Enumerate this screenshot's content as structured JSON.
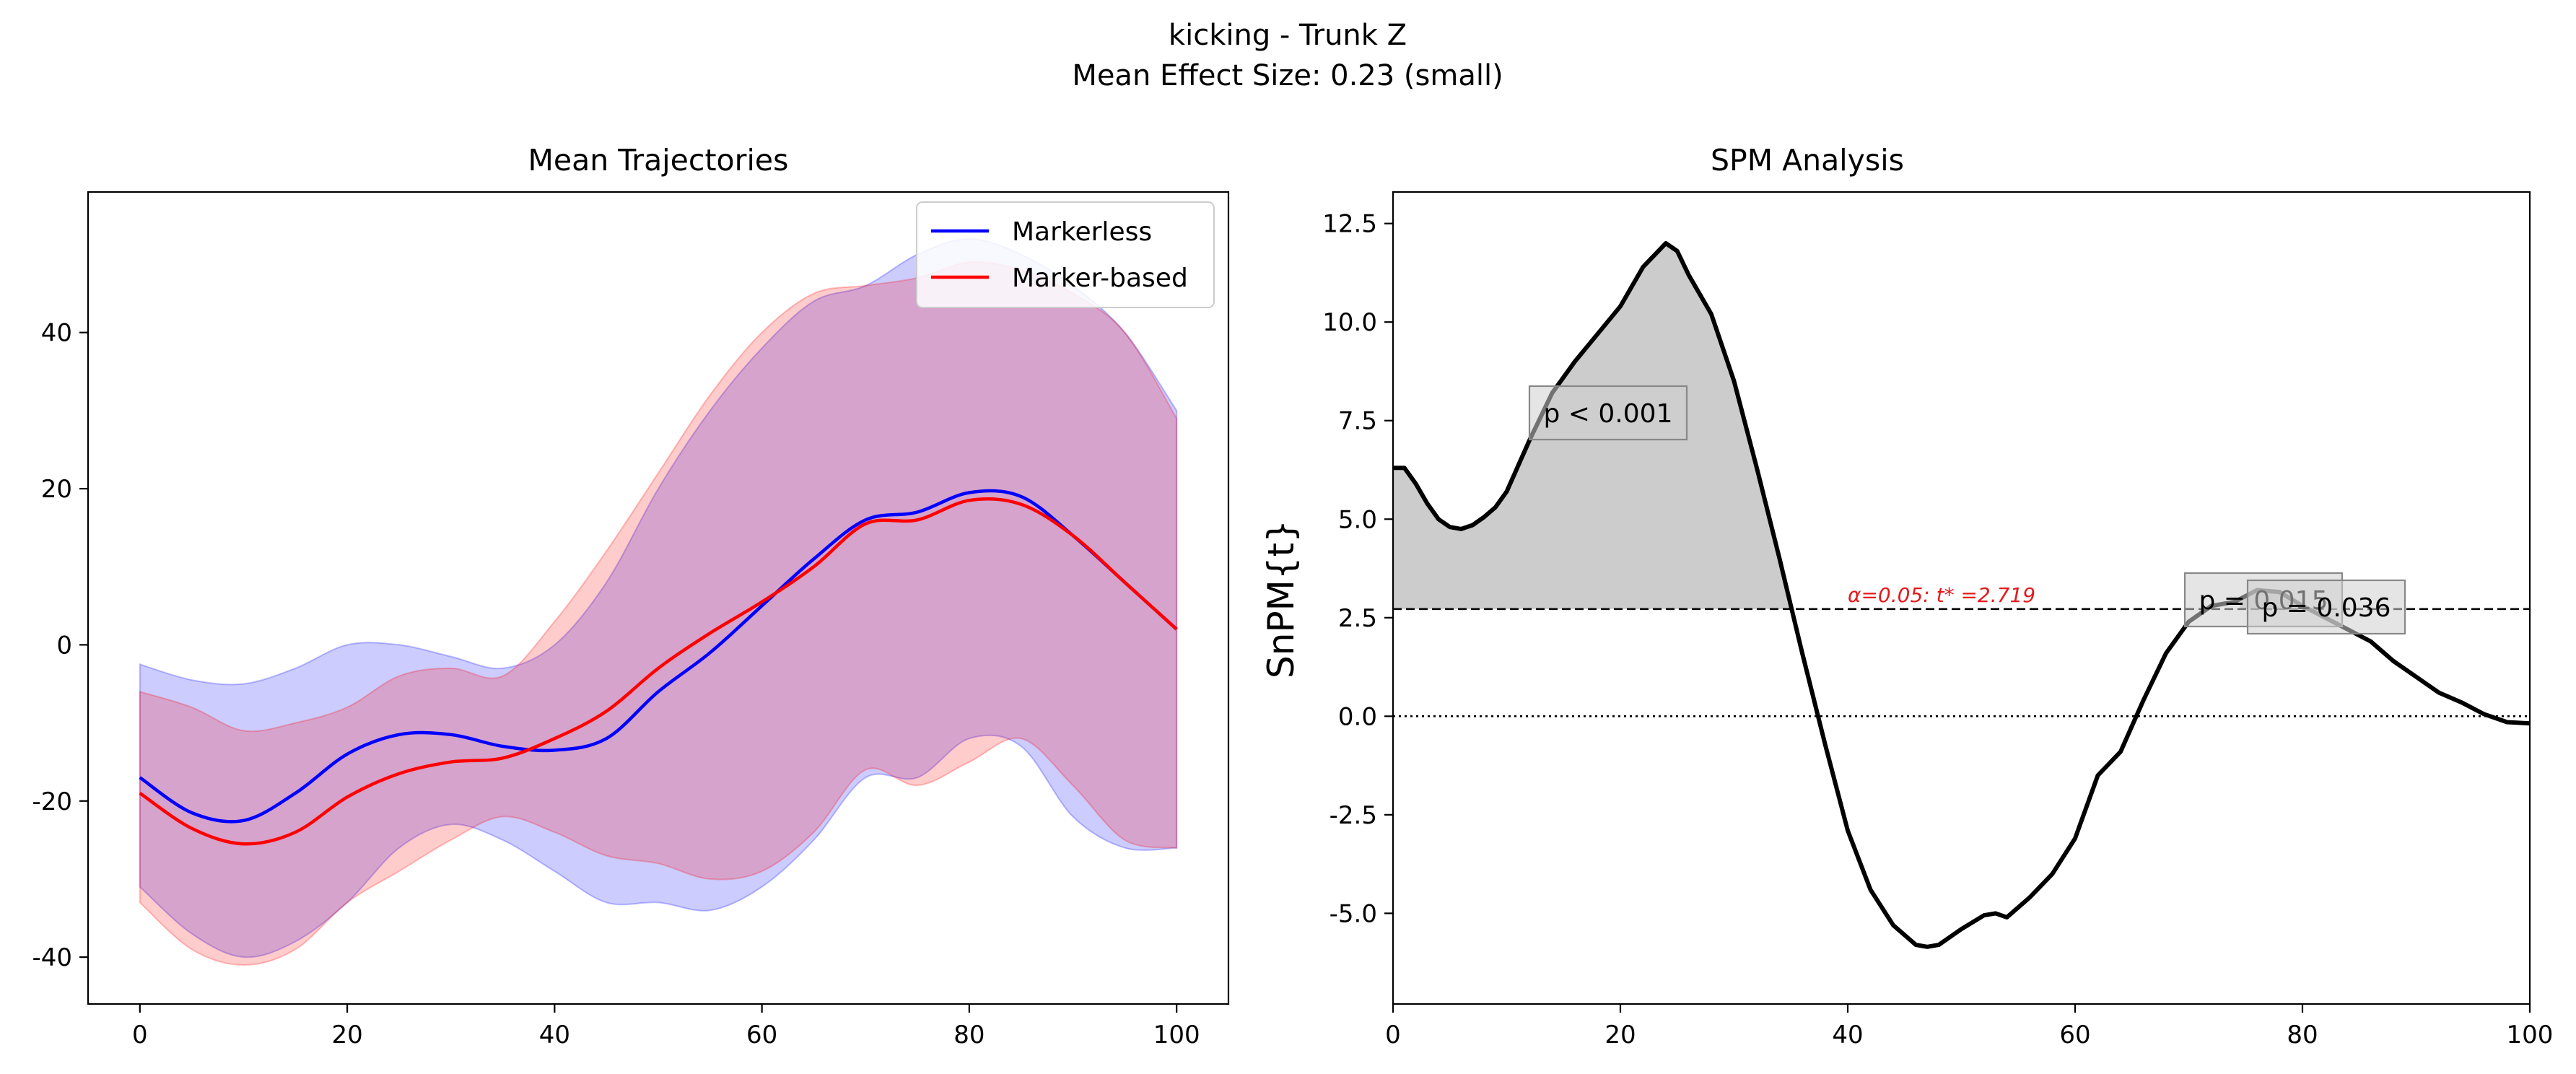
{
  "figure": {
    "title_line1": "kicking - Trunk Z",
    "title_line2": "Mean Effect Size: 0.23 (small)"
  },
  "chart_data": [
    {
      "type": "line",
      "title": "Mean Trajectories",
      "xlabel": "",
      "ylabel": "",
      "xlim": [
        -5,
        105
      ],
      "ylim": [
        -46,
        58
      ],
      "xticks": [
        0,
        20,
        40,
        60,
        80,
        100
      ],
      "xtick_labels": [
        "0",
        "20",
        "40",
        "60",
        "80",
        "100"
      ],
      "yticks": [
        -40,
        -20,
        0,
        20,
        40
      ],
      "ytick_labels": [
        "-40",
        "-20",
        "0",
        "20",
        "40"
      ],
      "legend_position": "top-right",
      "grid": false,
      "series": [
        {
          "name": "Markerless",
          "color": "#0000ff",
          "band_color": "#0000ff",
          "band_opacity": 0.2,
          "x": [
            0,
            5,
            10,
            15,
            20,
            25,
            30,
            35,
            40,
            45,
            50,
            55,
            60,
            65,
            70,
            75,
            80,
            85,
            90,
            95,
            100
          ],
          "mean": [
            -17,
            -21.5,
            -22.5,
            -19,
            -14,
            -11.5,
            -11.5,
            -13,
            -13.5,
            -12,
            -6,
            -1,
            5,
            11,
            16,
            17,
            19.5,
            19,
            14,
            8,
            2
          ],
          "upper": [
            -2.5,
            -4.5,
            -5,
            -3,
            0,
            0,
            -1.5,
            -3,
            0,
            8,
            20,
            30,
            38,
            44,
            46,
            50,
            52,
            50,
            46,
            40,
            30
          ],
          "lower": [
            -31,
            -37,
            -40,
            -38,
            -33,
            -26,
            -23,
            -25,
            -29,
            -33,
            -33,
            -34,
            -31,
            -25,
            -17,
            -17,
            -12,
            -13,
            -22,
            -26,
            -26
          ]
        },
        {
          "name": "Marker-based",
          "color": "#ff0000",
          "band_color": "#ff0000",
          "band_opacity": 0.2,
          "x": [
            0,
            5,
            10,
            15,
            20,
            25,
            30,
            35,
            40,
            45,
            50,
            55,
            60,
            65,
            70,
            75,
            80,
            85,
            90,
            95,
            100
          ],
          "mean": [
            -19,
            -23.5,
            -25.5,
            -24,
            -19.5,
            -16.5,
            -15,
            -14.5,
            -12,
            -8.5,
            -3,
            1.5,
            5.5,
            10,
            15.5,
            16,
            18.5,
            18,
            14,
            8,
            2
          ],
          "upper": [
            -6,
            -8,
            -11,
            -10,
            -8,
            -4,
            -3,
            -4,
            3,
            12,
            22,
            32,
            40,
            45,
            46,
            47,
            49,
            48,
            45,
            40,
            29
          ],
          "lower": [
            -33,
            -39,
            -41,
            -39,
            -33,
            -29,
            -25,
            -22,
            -24,
            -27,
            -28,
            -30,
            -29,
            -24,
            -16,
            -18,
            -15,
            -12,
            -18,
            -25,
            -26
          ]
        }
      ]
    },
    {
      "type": "line",
      "title": "SPM Analysis",
      "xlabel": "",
      "ylabel": "SnPM{t}",
      "xlim": [
        0,
        100
      ],
      "ylim": [
        -7.3,
        13.3
      ],
      "xticks": [
        0,
        20,
        40,
        60,
        80,
        100
      ],
      "xtick_labels": [
        "0",
        "20",
        "40",
        "60",
        "80",
        "100"
      ],
      "yticks": [
        -5,
        -2.5,
        0,
        2.5,
        5,
        7.5,
        10,
        12.5
      ],
      "ytick_labels": [
        "-5.0",
        "-2.5",
        "0.0",
        "2.5",
        "5.0",
        "7.5",
        "10.0",
        "12.5"
      ],
      "grid": false,
      "threshold": 2.719,
      "threshold_label": "α=0.05:  t* =2.719",
      "line_color": "#000000",
      "shade_color": "#cccccc",
      "series": [
        {
          "x": [
            0,
            1,
            2,
            3,
            4,
            5,
            6,
            7,
            8,
            9,
            10,
            12,
            14,
            16,
            18,
            20,
            22,
            24,
            25,
            26,
            28,
            30,
            32,
            34,
            36,
            38,
            40,
            42,
            44,
            46,
            47,
            48,
            50,
            52,
            53,
            54,
            56,
            58,
            60,
            62,
            64,
            66,
            68,
            70,
            72,
            74,
            76,
            78,
            80,
            82,
            84,
            86,
            88,
            90,
            92,
            94,
            96,
            98,
            100
          ],
          "y": [
            6.3,
            6.3,
            5.9,
            5.4,
            5.0,
            4.8,
            4.75,
            4.85,
            5.05,
            5.3,
            5.7,
            7.0,
            8.2,
            9.0,
            9.7,
            10.4,
            11.4,
            12.0,
            11.8,
            11.2,
            10.2,
            8.5,
            6.3,
            4.0,
            1.6,
            -0.7,
            -2.9,
            -4.4,
            -5.3,
            -5.8,
            -5.85,
            -5.8,
            -5.4,
            -5.05,
            -5.0,
            -5.1,
            -4.6,
            -4.0,
            -3.1,
            -1.5,
            -0.9,
            0.4,
            1.6,
            2.4,
            2.8,
            2.9,
            3.2,
            3.15,
            2.8,
            2.5,
            2.2,
            1.9,
            1.4,
            1.0,
            0.6,
            0.35,
            0.05,
            -0.15,
            -0.18
          ]
        }
      ],
      "clusters": [
        {
          "label": "p < 0.001",
          "x_range": [
            0,
            35
          ]
        },
        {
          "label": "p = 0.015",
          "x_range": [
            74.5,
            79
          ]
        },
        {
          "label": "p = 0.036",
          "x_range": [
            79,
            80.5
          ]
        }
      ]
    }
  ]
}
